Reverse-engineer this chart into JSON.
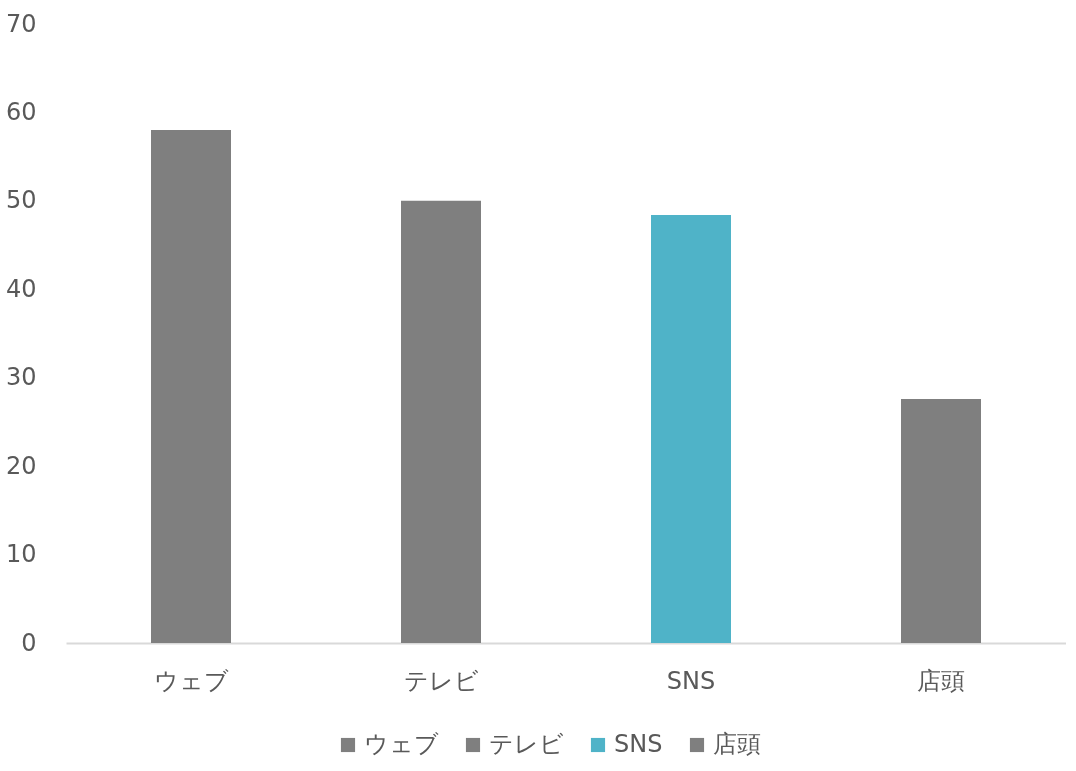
{
  "chart_data": {
    "type": "bar",
    "categories": [
      "ウェブ",
      "テレビ",
      "SNS",
      "店頭"
    ],
    "series": [
      {
        "name": "ウェブ",
        "color": "#7f7f7f",
        "values": [
          58,
          null,
          null,
          null
        ]
      },
      {
        "name": "テレビ",
        "color": "#7f7f7f",
        "values": [
          null,
          50,
          null,
          null
        ]
      },
      {
        "name": "SNS",
        "color": "#4fb3c8",
        "values": [
          null,
          null,
          48.4,
          null
        ]
      },
      {
        "name": "店頭",
        "color": "#7f7f7f",
        "values": [
          null,
          null,
          null,
          27.6
        ]
      }
    ],
    "ylim": [
      0,
      70
    ],
    "yticks": [
      0,
      10,
      20,
      30,
      40,
      50,
      60,
      70
    ],
    "grid": false,
    "legend": "bottom"
  }
}
